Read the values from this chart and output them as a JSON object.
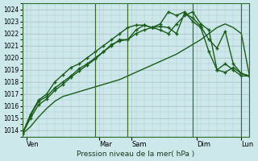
{
  "xlabel": "Pression niveau de la mer( hPa )",
  "ylim": [
    1013.5,
    1024.5
  ],
  "yticks": [
    1014,
    1015,
    1016,
    1017,
    1018,
    1019,
    1020,
    1021,
    1022,
    1023,
    1024
  ],
  "xlim": [
    0,
    28
  ],
  "bg_color": "#cce8eb",
  "grid_color": "#b0c8cc",
  "dark_line_color": "#1a5c1a",
  "day_labels": [
    "Ven",
    "Mar",
    "Sam",
    "Dim",
    "Lun"
  ],
  "day_tick_pos": [
    0.5,
    9.5,
    13.5,
    21.5,
    27.0
  ],
  "day_vline_pos": [
    0,
    9,
    13,
    21,
    27
  ],
  "series": [
    {
      "x": [
        0,
        1,
        2,
        3,
        4,
        5,
        6,
        7,
        8,
        9,
        10,
        11,
        12,
        13,
        14,
        15,
        16,
        17,
        18,
        19,
        20,
        21,
        22,
        23,
        24,
        25,
        26,
        27,
        28
      ],
      "y": [
        1013.7,
        1014.3,
        1015.1,
        1015.8,
        1016.4,
        1016.8,
        1017.0,
        1017.2,
        1017.4,
        1017.6,
        1017.8,
        1018.0,
        1018.2,
        1018.5,
        1018.8,
        1019.1,
        1019.4,
        1019.7,
        1020.0,
        1020.3,
        1020.7,
        1021.1,
        1021.5,
        1022.0,
        1022.5,
        1022.8,
        1022.5,
        1022.0,
        1018.5
      ],
      "color": "#1a5c1a",
      "lw": 1.0,
      "marker": null
    },
    {
      "x": [
        0,
        1,
        2,
        3,
        4,
        5,
        6,
        7,
        8,
        9,
        10,
        11,
        12,
        13,
        14,
        15,
        16,
        17,
        18,
        19,
        20,
        21,
        22,
        23,
        24,
        25,
        26,
        27,
        28
      ],
      "y": [
        1013.7,
        1015.2,
        1016.4,
        1016.8,
        1017.5,
        1018.0,
        1018.5,
        1019.1,
        1019.5,
        1020.0,
        1020.5,
        1021.0,
        1021.5,
        1021.5,
        1022.3,
        1022.7,
        1022.5,
        1022.8,
        1023.8,
        1023.5,
        1023.8,
        1023.0,
        1022.5,
        1020.5,
        1019.0,
        1019.5,
        1019.0,
        1018.5,
        1018.5
      ],
      "color": "#1a5c1a",
      "lw": 1.0,
      "marker": "+"
    },
    {
      "x": [
        0,
        1,
        2,
        3,
        4,
        5,
        6,
        7,
        8,
        9,
        10,
        11,
        12,
        13,
        14,
        15,
        16,
        17,
        18,
        19,
        20,
        21,
        22,
        23,
        24,
        25,
        26,
        27,
        28
      ],
      "y": [
        1013.7,
        1015.3,
        1016.5,
        1017.0,
        1018.0,
        1018.6,
        1019.2,
        1019.5,
        1020.0,
        1020.5,
        1021.0,
        1021.5,
        1022.0,
        1022.5,
        1022.7,
        1022.7,
        1022.5,
        1022.3,
        1022.0,
        1022.8,
        1023.5,
        1023.8,
        1022.8,
        1022.3,
        1019.0,
        1018.8,
        1019.2,
        1018.7,
        1018.5
      ],
      "color": "#1a5c1a",
      "lw": 1.0,
      "marker": "+"
    },
    {
      "x": [
        0,
        1,
        2,
        3,
        4,
        5,
        6,
        7,
        8,
        9,
        10,
        11,
        12,
        13,
        14,
        15,
        16,
        17,
        18,
        19,
        20,
        21,
        22,
        23,
        24,
        25,
        26,
        27,
        28
      ],
      "y": [
        1013.7,
        1015.0,
        1016.1,
        1016.6,
        1017.3,
        1017.8,
        1018.4,
        1018.9,
        1019.4,
        1019.9,
        1020.5,
        1021.1,
        1021.4,
        1021.5,
        1022.0,
        1022.3,
        1022.5,
        1022.6,
        1022.5,
        1022.0,
        1023.7,
        1023.3,
        1022.6,
        1021.5,
        1020.8,
        1022.2,
        1019.5,
        1018.7,
        1018.5
      ],
      "color": "#1a5c1a",
      "lw": 1.0,
      "marker": "+"
    }
  ]
}
